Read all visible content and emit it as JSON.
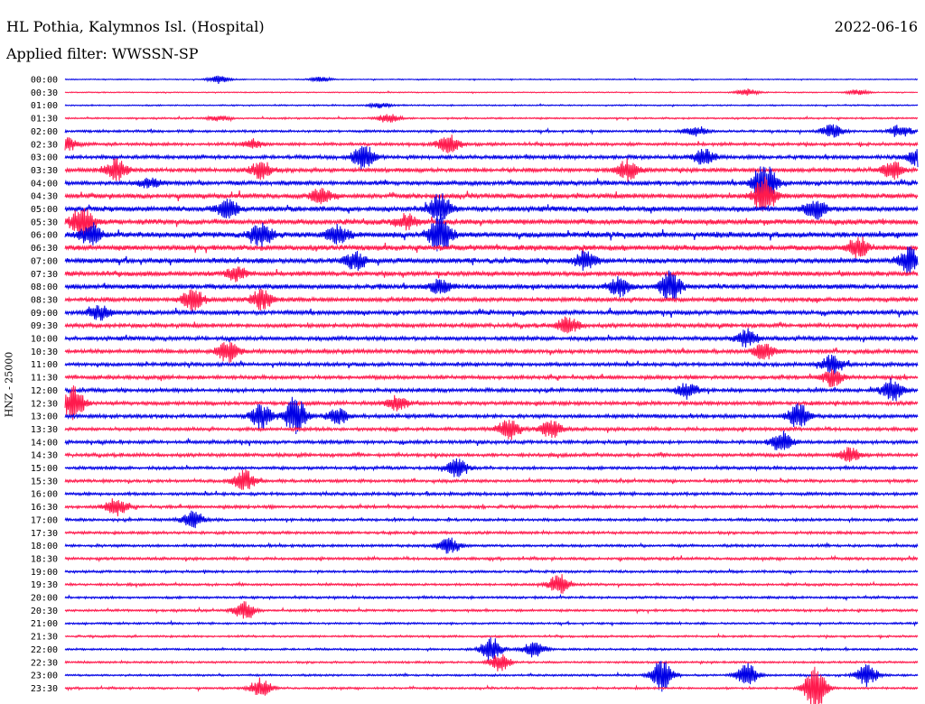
{
  "header": {
    "station": "HL Pothia, Kalymnos Isl. (Hospital)",
    "date": "2022-06-16",
    "filter": "Applied filter: WWSSN-SP"
  },
  "chart_data": {
    "type": "line",
    "title": "HL Pothia, Kalymnos Isl. (Hospital)",
    "subtitle": "Applied filter: WWSSN-SP",
    "ylabel": "HNZ - 25000",
    "row_labels": [
      "00:00",
      "00:30",
      "01:00",
      "01:30",
      "02:00",
      "02:30",
      "03:00",
      "03:30",
      "04:00",
      "04:30",
      "05:00",
      "05:30",
      "06:00",
      "06:30",
      "07:00",
      "07:30",
      "08:00",
      "08:30",
      "09:00",
      "09:30",
      "10:00",
      "10:30",
      "11:00",
      "11:30",
      "12:00",
      "12:30",
      "13:00",
      "13:30",
      "14:00",
      "14:30",
      "15:00",
      "15:30",
      "16:00",
      "16:30",
      "17:00",
      "17:30",
      "18:00",
      "18:30",
      "19:00",
      "19:30",
      "20:00",
      "20:30",
      "21:00",
      "21:30",
      "22:00",
      "22:30",
      "23:00",
      "23:30"
    ],
    "colors": [
      "#0000e6",
      "#ff1a4d"
    ],
    "row_noise": [
      0.15,
      0.15,
      0.2,
      0.25,
      0.35,
      0.45,
      0.55,
      0.6,
      0.65,
      0.7,
      0.75,
      0.8,
      0.85,
      0.8,
      0.75,
      0.7,
      0.7,
      0.65,
      0.65,
      0.6,
      0.6,
      0.6,
      0.55,
      0.55,
      0.55,
      0.55,
      0.55,
      0.5,
      0.5,
      0.5,
      0.45,
      0.45,
      0.45,
      0.45,
      0.4,
      0.4,
      0.4,
      0.4,
      0.35,
      0.35,
      0.35,
      0.35,
      0.3,
      0.3,
      0.3,
      0.3,
      0.3,
      0.3
    ],
    "bursts": [
      [
        0,
        0.18,
        0.4
      ],
      [
        0,
        0.3,
        0.3
      ],
      [
        1,
        0.8,
        0.4
      ],
      [
        1,
        0.93,
        0.3
      ],
      [
        2,
        0.37,
        0.3
      ],
      [
        3,
        0.38,
        0.6
      ],
      [
        3,
        0.18,
        0.3
      ],
      [
        4,
        0.74,
        0.6
      ],
      [
        4,
        0.9,
        0.8
      ],
      [
        4,
        0.98,
        0.7
      ],
      [
        5,
        0.45,
        1.2
      ],
      [
        5,
        0.0,
        0.8
      ],
      [
        5,
        0.22,
        0.5
      ],
      [
        6,
        0.35,
        1.4
      ],
      [
        6,
        0.75,
        0.9
      ],
      [
        6,
        1.0,
        1.0
      ],
      [
        7,
        0.06,
        1.3
      ],
      [
        7,
        0.23,
        1.0
      ],
      [
        7,
        0.66,
        1.2
      ],
      [
        7,
        0.97,
        1.1
      ],
      [
        8,
        0.82,
        2.6
      ],
      [
        8,
        0.1,
        0.6
      ],
      [
        9,
        0.82,
        2.2
      ],
      [
        9,
        0.3,
        0.8
      ],
      [
        10,
        0.44,
        1.8
      ],
      [
        10,
        0.19,
        1.1
      ],
      [
        10,
        0.88,
        1.2
      ],
      [
        11,
        0.02,
        1.8
      ],
      [
        11,
        0.4,
        0.8
      ],
      [
        12,
        0.44,
        2.2
      ],
      [
        12,
        0.23,
        1.3
      ],
      [
        12,
        0.32,
        1.0
      ],
      [
        12,
        0.03,
        1.2
      ],
      [
        13,
        0.93,
        1.1
      ],
      [
        14,
        0.99,
        1.4
      ],
      [
        14,
        0.34,
        1.0
      ],
      [
        14,
        0.61,
        1.0
      ],
      [
        15,
        0.2,
        0.8
      ],
      [
        16,
        0.71,
        1.7
      ],
      [
        16,
        0.65,
        1.1
      ],
      [
        16,
        0.44,
        0.9
      ],
      [
        17,
        0.15,
        1.3
      ],
      [
        17,
        0.23,
        1.1
      ],
      [
        18,
        0.04,
        0.8
      ],
      [
        19,
        0.59,
        0.9
      ],
      [
        20,
        0.8,
        1.0
      ],
      [
        21,
        0.19,
        1.3
      ],
      [
        21,
        0.82,
        0.9
      ],
      [
        22,
        0.9,
        1.1
      ],
      [
        23,
        0.9,
        1.0
      ],
      [
        24,
        0.97,
        1.3
      ],
      [
        24,
        0.73,
        0.9
      ],
      [
        25,
        0.01,
        1.9
      ],
      [
        25,
        0.39,
        0.9
      ],
      [
        26,
        0.27,
        2.2
      ],
      [
        26,
        0.23,
        1.4
      ],
      [
        26,
        0.86,
        1.4
      ],
      [
        26,
        0.32,
        0.9
      ],
      [
        27,
        0.52,
        1.2
      ],
      [
        27,
        0.57,
        1.0
      ],
      [
        28,
        0.84,
        1.2
      ],
      [
        29,
        0.92,
        0.9
      ],
      [
        30,
        0.46,
        1.1
      ],
      [
        31,
        0.21,
        1.2
      ],
      [
        33,
        0.06,
        1.0
      ],
      [
        34,
        0.15,
        1.0
      ],
      [
        36,
        0.45,
        1.0
      ],
      [
        39,
        0.58,
        1.2
      ],
      [
        41,
        0.21,
        1.0
      ],
      [
        44,
        0.5,
        1.4
      ],
      [
        44,
        0.55,
        0.9
      ],
      [
        45,
        0.51,
        1.0
      ],
      [
        46,
        0.7,
        1.8
      ],
      [
        46,
        0.8,
        1.3
      ],
      [
        46,
        0.94,
        1.3
      ],
      [
        47,
        0.88,
        2.8
      ],
      [
        47,
        0.23,
        1.0
      ]
    ]
  }
}
